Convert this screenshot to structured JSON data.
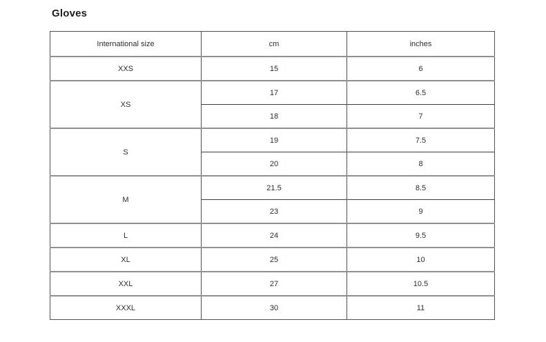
{
  "page": {
    "title": "Gloves"
  },
  "table": {
    "columns": [
      "International size",
      "cm",
      "inches"
    ],
    "groups": [
      {
        "size": "XXS",
        "rows": [
          {
            "cm": "15",
            "inches": "6"
          }
        ]
      },
      {
        "size": "XS",
        "rows": [
          {
            "cm": "17",
            "inches": "6.5"
          },
          {
            "cm": "18",
            "inches": "7"
          }
        ]
      },
      {
        "size": "S",
        "rows": [
          {
            "cm": "19",
            "inches": "7.5"
          },
          {
            "cm": "20",
            "inches": "8"
          }
        ]
      },
      {
        "size": "M",
        "rows": [
          {
            "cm": "21.5",
            "inches": "8.5"
          },
          {
            "cm": "23",
            "inches": "9"
          }
        ]
      },
      {
        "size": "L",
        "rows": [
          {
            "cm": "24",
            "inches": "9.5"
          }
        ]
      },
      {
        "size": "XL",
        "rows": [
          {
            "cm": "25",
            "inches": "10"
          }
        ]
      },
      {
        "size": "XXL",
        "rows": [
          {
            "cm": "27",
            "inches": "10.5"
          }
        ]
      },
      {
        "size": "XXXL",
        "rows": [
          {
            "cm": "30",
            "inches": "11"
          }
        ]
      }
    ]
  }
}
